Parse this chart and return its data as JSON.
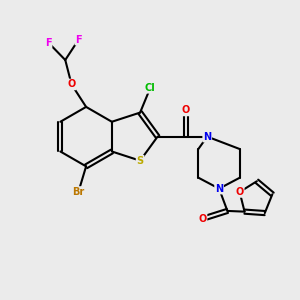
{
  "background_color": "#ebebeb",
  "atom_colors": {
    "C": "#000000",
    "N": "#0000ee",
    "O": "#ee0000",
    "S": "#bbaa00",
    "F": "#ee00ee",
    "Cl": "#00bb00",
    "Br": "#bb7700"
  },
  "title": ""
}
